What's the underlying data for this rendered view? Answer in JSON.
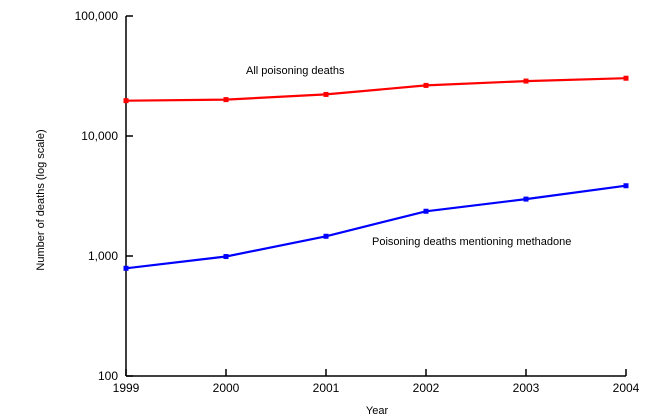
{
  "chart_data": {
    "type": "line",
    "title": "",
    "xlabel": "Year",
    "ylabel": "Number of deaths (log scale)",
    "yscale": "log",
    "ylim": [
      100,
      100000
    ],
    "grid": false,
    "x": [
      1999,
      2000,
      2001,
      2002,
      2003,
      2004
    ],
    "x_tick_labels": [
      "1999",
      "2000",
      "2001",
      "2002",
      "2003",
      "2004"
    ],
    "y_ticks": [
      100,
      1000,
      10000,
      100000
    ],
    "y_tick_labels": [
      "100",
      "1,000",
      "10,000",
      "100,000"
    ],
    "series": [
      {
        "name": "All poisoning deaths",
        "color": "#ff0000",
        "values": [
          19700,
          20100,
          22200,
          26400,
          28700,
          30300
        ]
      },
      {
        "name": "Poisoning deaths mentioning methadone",
        "color": "#0000ff",
        "values": [
          790,
          990,
          1460,
          2360,
          2980,
          3850
        ]
      }
    ]
  }
}
